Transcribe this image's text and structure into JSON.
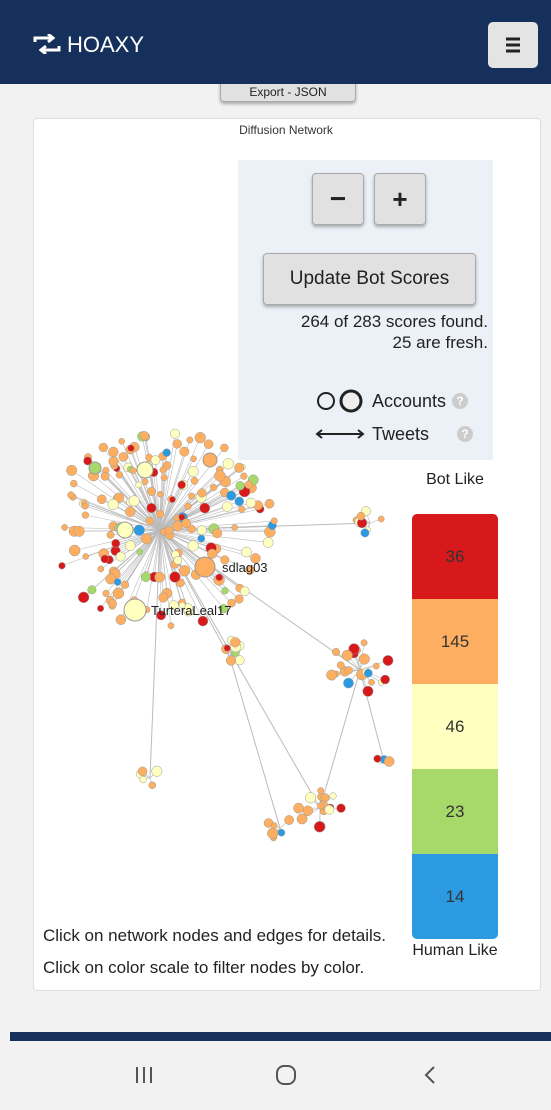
{
  "header": {
    "brand": "HOAXY"
  },
  "export_button": "Export - JSON",
  "network": {
    "title": "Diffusion Network",
    "node_labels": [
      "sdlag03",
      "TurteraLeal17"
    ]
  },
  "controls": {
    "zoom_out": "−",
    "zoom_in": "+",
    "update_button": "Update Bot Scores",
    "scores_found": "264 of 283 scores found.",
    "fresh": "25 are fresh."
  },
  "legend": {
    "accounts": "Accounts",
    "tweets": "Tweets",
    "help": "?"
  },
  "color_scale": {
    "top_label": "Bot Like",
    "bottom_label": "Human Like",
    "items": [
      {
        "count": 36,
        "color": "#d7191c"
      },
      {
        "count": 145,
        "color": "#fdae61"
      },
      {
        "count": 46,
        "color": "#ffffbf"
      },
      {
        "count": 23,
        "color": "#a6d96a"
      },
      {
        "count": 14,
        "color": "#2b9ae0"
      }
    ]
  },
  "instructions": [
    "Click on network nodes and edges for details.",
    "Click on color scale to filter nodes by color."
  ]
}
